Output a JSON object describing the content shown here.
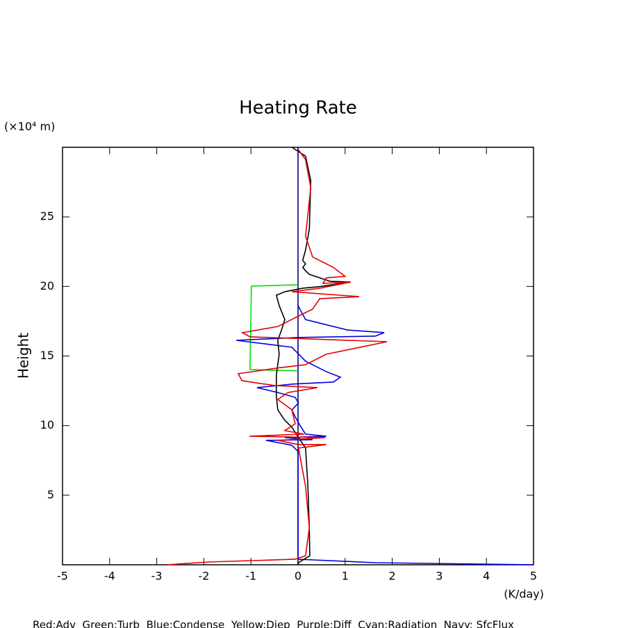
{
  "chart_data": {
    "type": "line",
    "title": "Heating Rate",
    "y_unit": "(×10⁴ m)",
    "y_label": "Height",
    "x_unit": "(K/day)",
    "footnote": "Red:Adv  Green:Turb  Blue:Condense  Yellow:Diep  Purple:Diff  Cyan:Radiation  Navy: SfcFlux",
    "xlim": [
      -5,
      5
    ],
    "xticks": [
      -5,
      -4,
      -3,
      -2,
      -1,
      0,
      1,
      2,
      3,
      4,
      5
    ],
    "ylim": [
      0,
      30
    ],
    "yticks": [
      5,
      10,
      15,
      20,
      25
    ],
    "series": [
      {
        "color": "#000080",
        "x": [
          0,
          0
        ],
        "values": [
          0,
          30
        ]
      },
      {
        "color": "#00e000",
        "x": [
          0,
          -0.99,
          -1.02,
          0
        ],
        "values": [
          20.12,
          20.02,
          14.03,
          13.93
        ]
      },
      {
        "color": "#0000e0",
        "x": [
          0,
          0.16,
          1.05,
          1.83,
          1.64,
          0,
          -1.31,
          -0.13,
          0.16,
          0.6,
          0.9,
          0.75,
          -0.13,
          -0.87,
          -0.43,
          -0.06,
          0.01,
          -0.13,
          -0.06,
          0.04,
          0.16,
          0.6,
          -0.28,
          0.31,
          -0.68,
          -0.13,
          0,
          0,
          1.64,
          5
        ],
        "values": [
          18.62,
          17.62,
          16.87,
          16.68,
          16.43,
          16.33,
          16.13,
          15.63,
          14.63,
          13.88,
          13.48,
          13.13,
          12.98,
          12.73,
          12.38,
          12.03,
          11.63,
          11.13,
          10.63,
          10.03,
          9.39,
          9.24,
          9.14,
          8.99,
          8.94,
          8.59,
          8.14,
          0.4,
          0.15,
          0
        ]
      },
      {
        "color": "#000000",
        "x": [
          -0.13,
          0.16,
          0.27,
          0.24,
          0.16,
          0.1,
          0.16,
          0.1,
          0.16,
          0.24,
          0.46,
          0.68,
          1.12,
          0.46,
          0.09,
          -0.28,
          -0.46,
          -0.4,
          -0.28,
          -0.35,
          -0.43,
          -0.4,
          -0.46,
          -0.46,
          -0.43,
          -0.28,
          -0.13,
          0.01,
          0.16,
          0.21,
          0.24,
          0.25,
          0.01,
          0
        ],
        "values": [
          30,
          29.36,
          27.61,
          24.11,
          22.62,
          21.87,
          21.62,
          21.37,
          21.12,
          20.87,
          20.62,
          20.37,
          20.32,
          19.99,
          19.87,
          19.62,
          19.37,
          18.62,
          17.62,
          16.87,
          16.13,
          15.13,
          13.63,
          12.13,
          11.13,
          10.38,
          9.89,
          9.14,
          8.39,
          5.64,
          2.65,
          0.65,
          0.15,
          0
        ]
      },
      {
        "color": "#e00000",
        "x": [
          0,
          0.16,
          0.27,
          0.16,
          0.31,
          0.75,
          1.0,
          0.6,
          0.53,
          1.12,
          0.46,
          -0.13,
          1.3,
          0.46,
          0.31,
          0.01,
          -0.43,
          -1.18,
          -1.02,
          1.89,
          0.6,
          0.16,
          -0.43,
          -1.27,
          -1.19,
          -0.5,
          0.41,
          -0.21,
          -0.43,
          -0.13,
          -0.06,
          -0.28,
          0.13,
          -1.03,
          0.58,
          -0.43,
          0.01,
          0.6,
          0.01,
          0.16,
          0.24,
          0.16,
          -0.06,
          -1.9,
          -2.79
        ],
        "values": [
          29.86,
          29.11,
          27.11,
          23.61,
          22.12,
          21.37,
          20.72,
          20.62,
          20.22,
          20.32,
          19.87,
          19.62,
          19.27,
          19.12,
          18.37,
          17.87,
          17.12,
          16.68,
          16.38,
          16.03,
          15.13,
          14.38,
          14.14,
          13.73,
          13.23,
          12.88,
          12.73,
          12.38,
          11.88,
          11.13,
          10.13,
          9.64,
          9.39,
          9.24,
          9.14,
          8.94,
          8.64,
          8.64,
          8.39,
          5.64,
          2.65,
          0.65,
          0.4,
          0.2,
          0
        ]
      }
    ]
  }
}
